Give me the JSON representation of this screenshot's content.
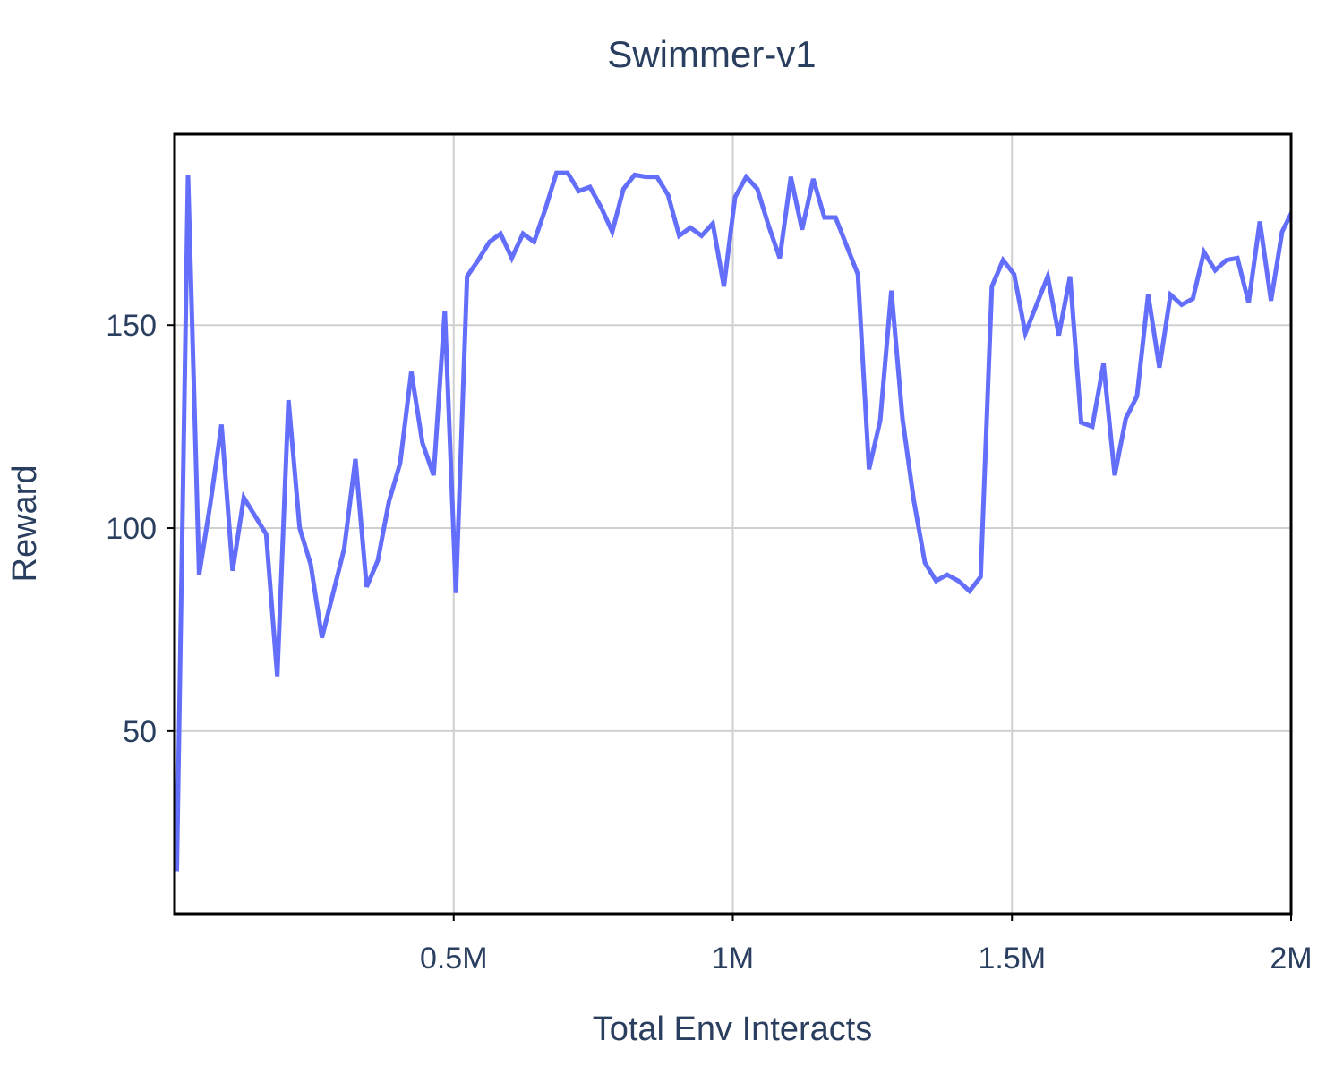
{
  "chart_data": {
    "type": "line",
    "title": "Swimmer-v1",
    "xlabel": "Total Env Interacts",
    "ylabel": "Reward",
    "xlim": [
      0,
      2000000
    ],
    "ylim": [
      5,
      197
    ],
    "grid": true,
    "x_ticks": [
      {
        "value": 500000,
        "label": "0.5M"
      },
      {
        "value": 1000000,
        "label": "1M"
      },
      {
        "value": 1500000,
        "label": "1.5M"
      },
      {
        "value": 2000000,
        "label": "2M"
      }
    ],
    "y_ticks": [
      {
        "value": 50,
        "label": "50"
      },
      {
        "value": 100,
        "label": "100"
      },
      {
        "value": 150,
        "label": "150"
      }
    ],
    "series": [
      {
        "color": "#636efa",
        "x": [
          4000,
          24000,
          44000,
          64000,
          84000,
          104000,
          124000,
          144000,
          164000,
          184000,
          204000,
          224000,
          244000,
          264000,
          284000,
          304000,
          324000,
          344000,
          364000,
          384000,
          404000,
          424000,
          444000,
          464000,
          484000,
          504000,
          524000,
          544000,
          564000,
          584000,
          604000,
          624000,
          644000,
          664000,
          684000,
          704000,
          724000,
          744000,
          764000,
          784000,
          804000,
          824000,
          844000,
          864000,
          884000,
          904000,
          924000,
          944000,
          964000,
          984000,
          1004000,
          1024000,
          1044000,
          1064000,
          1084000,
          1104000,
          1124000,
          1144000,
          1164000,
          1184000,
          1204000,
          1224000,
          1244000,
          1264000,
          1284000,
          1304000,
          1324000,
          1344000,
          1364000,
          1384000,
          1404000,
          1424000,
          1444000,
          1464000,
          1484000,
          1504000,
          1524000,
          1544000,
          1564000,
          1584000,
          1604000,
          1624000,
          1644000,
          1664000,
          1684000,
          1704000,
          1724000,
          1744000,
          1764000,
          1784000,
          1804000,
          1824000,
          1844000,
          1864000,
          1884000,
          1904000,
          1924000,
          1944000,
          1964000,
          1984000,
          2004000
        ],
        "y": [
          15.5,
          187,
          88.5,
          106,
          125.5,
          89.5,
          107.5,
          103,
          98.5,
          63.5,
          131.5,
          100,
          91,
          73,
          84,
          95,
          117,
          85.5,
          92,
          106.5,
          116,
          138.5,
          121,
          113,
          153.5,
          84,
          162,
          166,
          170.5,
          172.5,
          166.5,
          172.5,
          170.5,
          178.5,
          187.5,
          187.5,
          183,
          184,
          179,
          173,
          183.5,
          187,
          186.5,
          186.5,
          182,
          172,
          174,
          172,
          175,
          159.5,
          181.5,
          186.5,
          183.5,
          174.5,
          166.5,
          186.5,
          173.5,
          186,
          176.5,
          176.5,
          169.5,
          162.5,
          114.5,
          126.5,
          158.5,
          127,
          107,
          91.5,
          87,
          88.5,
          87,
          84.5,
          88,
          159.5,
          166,
          162.5,
          148,
          155,
          162,
          147.5,
          162,
          126,
          125,
          140.5,
          113,
          127,
          132.5,
          157.5,
          139.5,
          157.5,
          155,
          156.5,
          168,
          163.5,
          166,
          166.5,
          155.5,
          175.5,
          156,
          173,
          178.5
        ]
      }
    ]
  }
}
